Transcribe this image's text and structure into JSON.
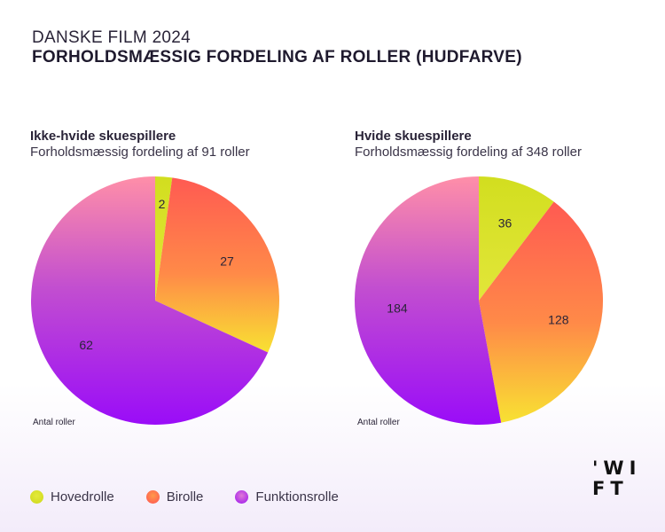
{
  "header": {
    "kicker": "DANSKE FILM 2024",
    "title": "FORHOLDSMÆSSIG FORDELING AF ROLLER (HUDFARVE)"
  },
  "legend": [
    {
      "label": "Hovedrolle",
      "color": "#d6e024"
    },
    {
      "label": "Birolle",
      "color": "#ff5f55"
    },
    {
      "label": "Funktionsrolle",
      "color": "#b43ce6"
    }
  ],
  "logo": {
    "line1": "'WI",
    "line2": "FT"
  },
  "chart_data": [
    {
      "type": "pie",
      "title": "Ikke-hvide skuespillere",
      "subtitle": "Forholdsmæssig fordeling af 91 roller",
      "note": "Antal roller",
      "categories": [
        "Hovedrolle",
        "Birolle",
        "Funktionsrolle"
      ],
      "values": [
        2,
        27,
        62
      ]
    },
    {
      "type": "pie",
      "title": "Hvide skuespillere",
      "subtitle": "Forholdsmæssig fordeling af 348 roller",
      "note": "Antal roller",
      "categories": [
        "Hovedrolle",
        "Birolle",
        "Funktionsrolle"
      ],
      "values": [
        36,
        128,
        184
      ]
    }
  ]
}
